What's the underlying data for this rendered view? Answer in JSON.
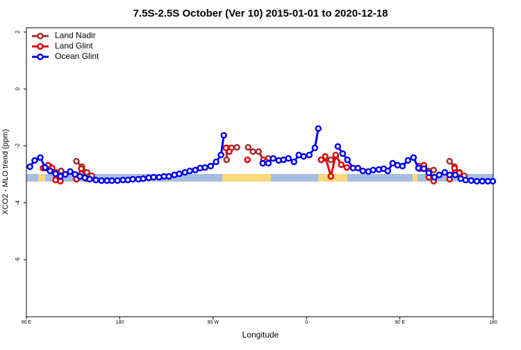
{
  "chart_data": {
    "type": "line",
    "title": "7.5S-2.5S October (Ver 10)   2015-01-01 to 2020-12-18",
    "x_label": "Longitude",
    "y_label": "XCO2 - MLO trend (ppm)",
    "xlim": [
      90,
      540
    ],
    "ylim": [
      -8,
      2.15
    ],
    "xticks": [
      {
        "value": 90,
        "label": "90 E"
      },
      180,
      {
        "value": 270,
        "label": "90 W"
      },
      {
        "value": 360,
        "label": "0"
      },
      {
        "value": 450,
        "label": "90 E"
      },
      {
        "value": 540,
        "label": "180"
      }
    ],
    "yticks": [
      2,
      0,
      -2,
      -4,
      -6
    ],
    "legend": "top-left",
    "series": [
      {
        "name": "Land Nadir",
        "color": "#a52a2a",
        "x": [
          108.8,
          112.1,
          118.8,
          123.5,
          null,
          138.2,
          143.6,
          148.3,
          153.0,
          null,
          283.0,
          283.0,
          287.7,
          293.0,
          null,
          303.7,
          308.4,
          313.8,
          318.5,
          323.2,
          null,
          378.1,
          383.5,
          388.2,
          null,
          468.6,
          473.2,
          477.9,
          482.6,
          null,
          498.0,
          502.7,
          507.4,
          512.1
        ],
        "values": [
          -2.78,
          -2.71,
          -2.93,
          -2.88,
          null,
          -2.54,
          -2.73,
          -2.93,
          -3.05,
          null,
          -2.49,
          -2.07,
          -2.07,
          -2.05,
          null,
          -2.05,
          -2.2,
          -2.2,
          -2.49,
          -2.44,
          null,
          -2.44,
          -2.49,
          -2.37,
          null,
          -2.71,
          -2.73,
          -2.88,
          -2.85,
          null,
          -2.54,
          -2.73,
          -2.93,
          -3.05
        ]
      },
      {
        "name": "Land Glint",
        "color": "#e00000",
        "x": [
          106.1,
          110.8,
          114.8,
          118.1,
          122.8,
          null,
          138.2,
          142.9,
          147.6,
          null,
          282.3,
          285.6,
          null,
          303.1,
          null,
          321.2,
          null,
          374.1,
          378.1,
          383.5,
          388.2,
          393.5,
          398.9,
          null,
          469.2,
          473.2,
          477.9,
          482.6,
          null,
          498.0,
          502.7,
          507.4
        ],
        "values": [
          -2.78,
          -2.68,
          -2.78,
          -3.2,
          -3.24,
          null,
          -3.17,
          -2.8,
          -3.15,
          null,
          -2.07,
          -2.2,
          null,
          -2.49,
          null,
          -2.56,
          null,
          -2.49,
          -2.37,
          -3.07,
          -2.32,
          -2.66,
          -2.76,
          null,
          -2.8,
          -2.68,
          -3.1,
          -3.24,
          null,
          -3.17,
          -2.78,
          -2.95
        ]
      },
      {
        "name": "Ocean Glint",
        "color": "#0000ee",
        "x": [
          93.4,
          98.0,
          103.4,
          108.1,
          112.8,
          118.1,
          122.8,
          127.5,
          132.2,
          136.9,
          141.6,
          146.3,
          151.0,
          157.0,
          162.4,
          167.7,
          172.4,
          177.8,
          183.1,
          187.8,
          192.5,
          197.9,
          202.6,
          207.9,
          212.6,
          218.0,
          222.7,
          227.4,
          232.7,
          237.4,
          242.8,
          247.5,
          252.8,
          257.5,
          262.2,
          267.6,
          272.9,
          277.6,
          280.3,
          null,
          317.8,
          323.2,
          327.9,
          333.2,
          337.9,
          342.6,
          348.0,
          352.6,
          357.3,
          362.7,
          368.1,
          371.4,
          null,
          390.2,
          394.9,
          399.5,
          404.9,
          409.6,
          414.3,
          419.6,
          424.3,
          429.7,
          434.4,
          438.4,
          443.1,
          447.8,
          452.5,
          457.8,
          463.2,
          467.9,
          473.2,
          477.9,
          483.3,
          488.0,
          493.3,
          498.0,
          503.4,
          508.8,
          513.4,
          518.8,
          524.2,
          529.5,
          534.9,
          539.6
        ],
        "values": [
          -2.73,
          -2.51,
          -2.41,
          -2.76,
          -2.88,
          -2.98,
          -3.07,
          -3.0,
          -2.9,
          -3.0,
          -3.07,
          -3.12,
          -3.17,
          -3.2,
          -3.22,
          -3.22,
          -3.22,
          -3.22,
          -3.2,
          -3.2,
          -3.17,
          -3.17,
          -3.15,
          -3.12,
          -3.1,
          -3.1,
          -3.07,
          -3.07,
          -3.02,
          -2.98,
          -2.93,
          -2.88,
          -2.85,
          -2.78,
          -2.76,
          -2.71,
          -2.56,
          -2.32,
          -1.63,
          null,
          -2.61,
          -2.61,
          -2.44,
          -2.51,
          -2.49,
          -2.44,
          -2.56,
          -2.32,
          -2.37,
          -2.32,
          -2.07,
          -1.39,
          null,
          -2.02,
          -2.27,
          -2.49,
          -2.78,
          -2.78,
          -2.88,
          -2.9,
          -2.85,
          -2.83,
          -2.8,
          -2.88,
          -2.61,
          -2.68,
          -2.71,
          -2.51,
          -2.41,
          -2.78,
          -2.8,
          -2.95,
          -3.1,
          -3.02,
          -2.93,
          -3.02,
          -3.02,
          -3.15,
          -3.2,
          -3.22,
          -3.24,
          -3.24,
          -3.24,
          -3.24
        ]
      }
    ]
  }
}
